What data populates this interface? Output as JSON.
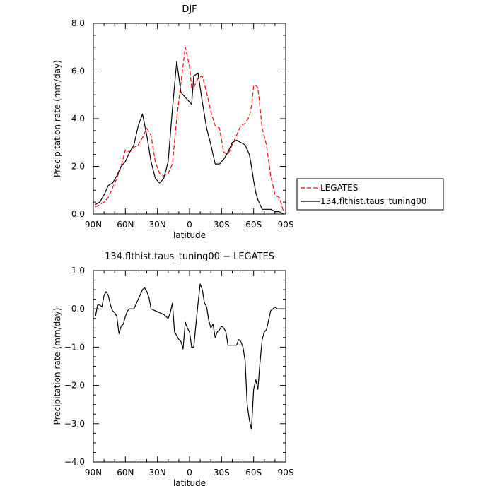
{
  "chart_data": [
    {
      "type": "line",
      "title": "DJF",
      "xlabel": "latitude",
      "ylabel": "Precipitation rate  (mm/day)",
      "xlim": [
        90,
        -90
      ],
      "ylim": [
        0,
        8
      ],
      "x_ticks": [
        90,
        60,
        30,
        0,
        -30,
        -60,
        -90
      ],
      "x_tick_labels": [
        "90N",
        "60N",
        "30N",
        "0",
        "30S",
        "60S",
        "90S"
      ],
      "y_ticks": [
        0,
        2,
        4,
        6,
        8
      ],
      "y_tick_labels": [
        "0.0",
        "2.0",
        "4.0",
        "6.0",
        "8.0"
      ],
      "legend_position": "right-outside",
      "series": [
        {
          "name": "LEGATES",
          "color": "#ff0000",
          "dash": "dashed",
          "x": [
            88,
            84,
            80,
            76,
            72,
            68,
            64,
            60,
            56,
            52,
            48,
            44,
            40,
            36,
            32,
            28,
            24,
            20,
            16,
            12,
            8,
            4,
            0,
            -2,
            -4,
            -8,
            -12,
            -16,
            -20,
            -24,
            -28,
            -32,
            -36,
            -40,
            -44,
            -48,
            -52,
            -56,
            -58,
            -60,
            -62,
            -64,
            -68,
            -72,
            -76,
            -80,
            -84,
            -88
          ],
          "y": [
            0.3,
            0.4,
            0.5,
            0.7,
            1.1,
            1.5,
            2.0,
            2.7,
            2.6,
            2.8,
            2.9,
            3.2,
            3.6,
            3.3,
            2.2,
            1.7,
            1.6,
            1.7,
            2.1,
            4.0,
            5.5,
            7.0,
            6.2,
            5.3,
            5.3,
            5.7,
            5.8,
            5.1,
            4.3,
            3.7,
            3.6,
            2.6,
            2.5,
            2.9,
            3.3,
            3.7,
            3.8,
            4.1,
            4.5,
            5.4,
            5.4,
            5.3,
            3.6,
            2.9,
            1.6,
            0.8,
            0.7,
            0.1
          ]
        },
        {
          "name": "134.flthist.taus_tuning00",
          "color": "#000000",
          "dash": "solid",
          "x": [
            88,
            84,
            80,
            76,
            72,
            68,
            64,
            60,
            56,
            52,
            48,
            44,
            40,
            36,
            32,
            28,
            24,
            20,
            16,
            12,
            8,
            4,
            0,
            -2,
            -4,
            -8,
            -12,
            -16,
            -20,
            -24,
            -28,
            -32,
            -36,
            -40,
            -44,
            -48,
            -52,
            -56,
            -58,
            -60,
            -62,
            -64,
            -68,
            -72,
            -76,
            -80,
            -84,
            -88
          ],
          "y": [
            0.4,
            0.5,
            0.8,
            1.2,
            1.3,
            1.6,
            2.0,
            2.2,
            2.6,
            2.9,
            3.7,
            4.2,
            3.3,
            2.2,
            1.5,
            1.3,
            1.5,
            2.2,
            4.4,
            6.4,
            5.1,
            4.9,
            4.7,
            4.6,
            5.8,
            5.9,
            4.7,
            3.6,
            2.9,
            2.1,
            2.1,
            2.3,
            2.6,
            3.0,
            3.1,
            3.0,
            2.9,
            2.5,
            2.0,
            1.4,
            0.9,
            0.6,
            0.2,
            0.2,
            0.2,
            0.1,
            0.1,
            0.0
          ]
        }
      ]
    },
    {
      "type": "line",
      "title": "134.flthist.taus_tuning00 − LEGATES",
      "xlabel": "latitude",
      "ylabel": "Precipitation rate  (mm/day)",
      "xlim": [
        90,
        -90
      ],
      "ylim": [
        -4,
        1
      ],
      "x_ticks": [
        90,
        60,
        30,
        0,
        -30,
        -60,
        -90
      ],
      "x_tick_labels": [
        "90N",
        "60N",
        "30N",
        "0",
        "30S",
        "60S",
        "90S"
      ],
      "y_ticks": [
        -4,
        -3,
        -2,
        -1,
        0,
        1
      ],
      "y_tick_labels": [
        "−4.0",
        "−3.0",
        "−2.0",
        "−1.0",
        "0.0",
        "1.0"
      ],
      "series": [
        {
          "name": "",
          "color": "#000000",
          "dash": "solid",
          "x": [
            88,
            86,
            84,
            82,
            80,
            78,
            76,
            74,
            72,
            70,
            68,
            66,
            64,
            62,
            60,
            58,
            56,
            52,
            48,
            44,
            42,
            40,
            38,
            36,
            32,
            28,
            24,
            22,
            20,
            18,
            16,
            14,
            12,
            10,
            8,
            6,
            4,
            2,
            0,
            -2,
            -4,
            -6,
            -8,
            -10,
            -12,
            -14,
            -16,
            -18,
            -20,
            -22,
            -24,
            -26,
            -28,
            -30,
            -32,
            -34,
            -36,
            -40,
            -44,
            -46,
            -48,
            -50,
            -52,
            -54,
            -56,
            -58,
            -60,
            -62,
            -64,
            -66,
            -68,
            -70,
            -72,
            -74,
            -76,
            -78,
            -80,
            -82,
            -84,
            -86,
            -88
          ],
          "y": [
            -0.2,
            0.1,
            0.1,
            0.05,
            0.35,
            0.45,
            0.35,
            0.1,
            -0.05,
            -0.1,
            -0.2,
            -0.65,
            -0.45,
            -0.4,
            -0.2,
            -0.05,
            0.0,
            0.0,
            0.25,
            0.5,
            0.55,
            0.45,
            0.3,
            0.0,
            -0.05,
            -0.1,
            -0.15,
            -0.2,
            -0.25,
            -0.1,
            0.15,
            -0.6,
            -0.7,
            -0.8,
            -0.85,
            -1.05,
            -0.35,
            -0.5,
            -0.6,
            -1.0,
            -1.0,
            -0.4,
            0.15,
            0.65,
            0.5,
            0.15,
            0.05,
            -0.3,
            -0.5,
            -0.4,
            -0.75,
            -0.6,
            -0.55,
            -0.45,
            -0.5,
            -0.6,
            -0.95,
            -0.95,
            -0.95,
            -0.8,
            -0.85,
            -1.0,
            -1.35,
            -2.5,
            -2.9,
            -3.15,
            -2.1,
            -1.85,
            -2.1,
            -1.4,
            -0.8,
            -0.6,
            -0.55,
            -0.3,
            -0.05,
            0.0,
            0.05,
            0.0,
            0.0,
            0.0,
            0.0
          ]
        }
      ]
    }
  ]
}
